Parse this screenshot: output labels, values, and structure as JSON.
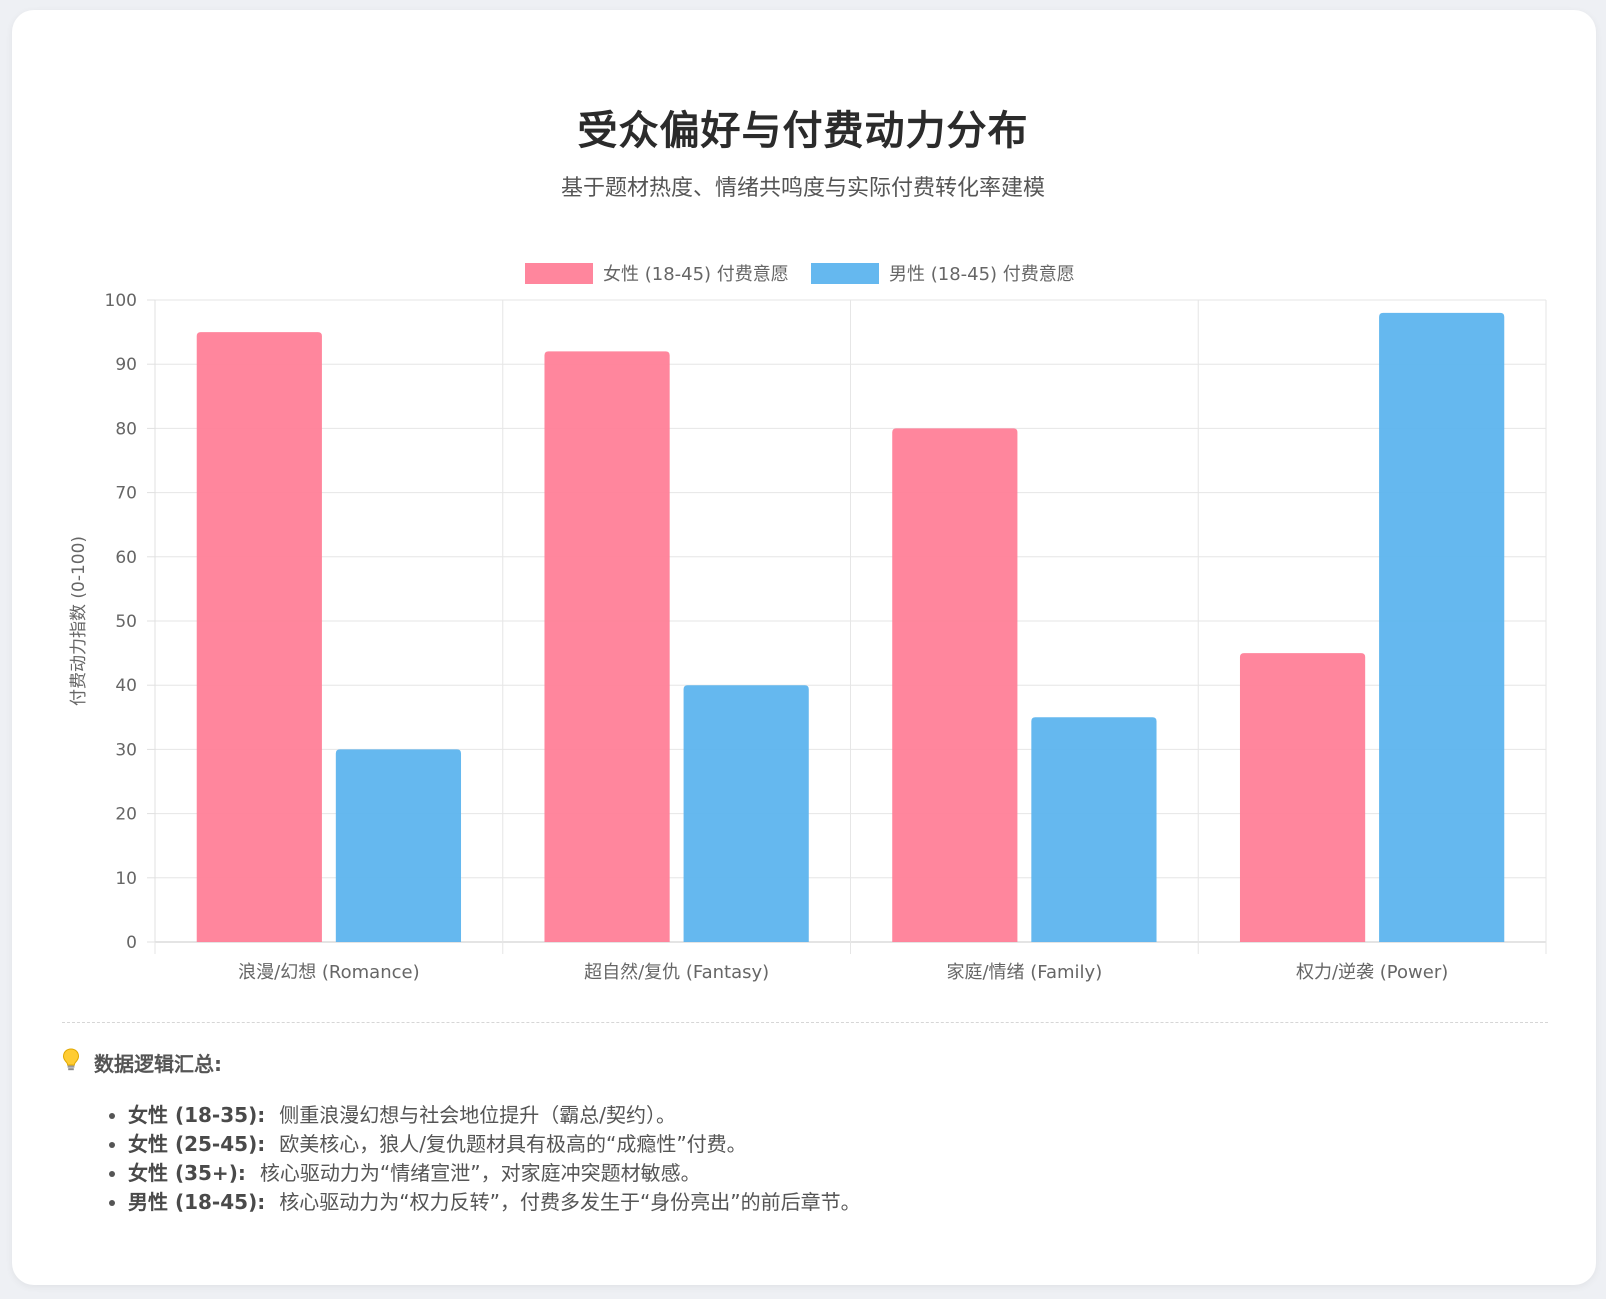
{
  "header": {
    "title": "受众偏好与付费动力分布",
    "subtitle": "基于题材热度、情绪共鸣度与实际付费转化率建模"
  },
  "chart_data": {
    "type": "bar",
    "categories": [
      "浪漫/幻想 (Romance)",
      "超自然/复仇 (Fantasy)",
      "家庭/情绪 (Family)",
      "权力/逆袭 (Power)"
    ],
    "series": [
      {
        "name": "女性 (18-45) 付费意愿",
        "values": [
          95,
          92,
          80,
          45
        ],
        "color": "#ff7f98"
      },
      {
        "name": "男性 (18-45) 付费意愿",
        "values": [
          30,
          40,
          35,
          98
        ],
        "color": "#5db4ee"
      }
    ],
    "ylabel": "付费动力指数 (0-100)",
    "xlabel": "",
    "ylim": [
      0,
      100
    ],
    "yticks": [
      0,
      10,
      20,
      30,
      40,
      50,
      60,
      70,
      80,
      90,
      100
    ],
    "grid": true,
    "legend": "top-center"
  },
  "summary": {
    "icon": "lightbulb-icon",
    "title": "数据逻辑汇总:",
    "items": [
      {
        "label": "女性 (18-35):",
        "text": "侧重浪漫幻想与社会地位提升（霸总/契约）。"
      },
      {
        "label": "女性 (25-45):",
        "text": "欧美核心，狼人/复仇题材具有极高的“成瘾性”付费。"
      },
      {
        "label": "女性 (35+):",
        "text": "核心驱动力为“情绪宣泄”，对家庭冲突题材敏感。"
      },
      {
        "label": "男性 (18-45):",
        "text": "核心驱动力为“权力反转”，付费多发生于“身份亮出”的前后章节。"
      }
    ]
  }
}
